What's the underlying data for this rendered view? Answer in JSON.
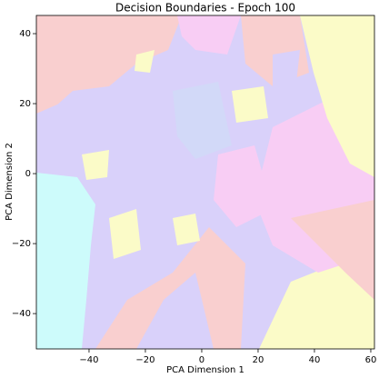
{
  "chart_data": {
    "type": "decision-boundary",
    "title": "Decision Boundaries - Epoch 100",
    "x_label": "PCA Dimension 1",
    "y_label": "PCA Dimension 2",
    "xlim": [
      -58.7,
      61.3
    ],
    "ylim": [
      -50.1,
      45.2
    ],
    "xticks": [
      {
        "value": -40,
        "label": "−40"
      },
      {
        "value": -20,
        "label": "−20"
      },
      0,
      20,
      40,
      60
    ],
    "yticks": [
      {
        "value": -40,
        "label": "−40"
      },
      {
        "value": -20,
        "label": "−20"
      },
      0,
      20,
      40
    ]
  }
}
